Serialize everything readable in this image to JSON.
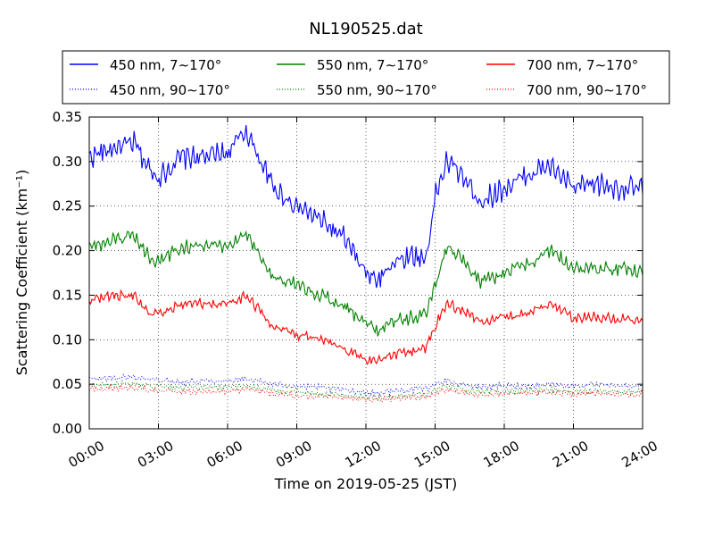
{
  "chart_data": {
    "type": "line",
    "title": "NL190525.dat",
    "xlabel": "Time on 2019-05-25 (JST)",
    "ylabel": "Scattering Coefficient (km⁻¹)",
    "xlim": [
      "00:00",
      "24:00"
    ],
    "ylim": [
      0,
      0.35
    ],
    "x_ticks": [
      "00:00",
      "03:00",
      "06:00",
      "09:00",
      "12:00",
      "15:00",
      "18:00",
      "21:00",
      "24:00"
    ],
    "y_ticks": [
      "0.00",
      "0.05",
      "0.10",
      "0.15",
      "0.20",
      "0.25",
      "0.30",
      "0.35"
    ],
    "x_hours": [
      0,
      1,
      2,
      2.5,
      3,
      4,
      5,
      6,
      6.8,
      8,
      9,
      10,
      11,
      12,
      12.5,
      13,
      14,
      14.6,
      15,
      15.5,
      16,
      17,
      18,
      19,
      20,
      21,
      22,
      23,
      24
    ],
    "legend_location": "top",
    "series": [
      {
        "name": "450 nm, 7∼170°",
        "color": "#0000ff",
        "style": "solid",
        "values": [
          0.305,
          0.315,
          0.32,
          0.295,
          0.282,
          0.305,
          0.305,
          0.31,
          0.335,
          0.27,
          0.25,
          0.235,
          0.215,
          0.175,
          0.165,
          0.185,
          0.195,
          0.19,
          0.26,
          0.3,
          0.29,
          0.255,
          0.27,
          0.285,
          0.295,
          0.27,
          0.275,
          0.27,
          0.27
        ]
      },
      {
        "name": "450 nm, 90∼170°",
        "color": "#0000ff",
        "style": "dotted",
        "values": [
          0.056,
          0.057,
          0.058,
          0.056,
          0.055,
          0.053,
          0.054,
          0.054,
          0.056,
          0.05,
          0.048,
          0.046,
          0.044,
          0.041,
          0.04,
          0.042,
          0.044,
          0.045,
          0.05,
          0.055,
          0.05,
          0.047,
          0.048,
          0.048,
          0.05,
          0.048,
          0.049,
          0.048,
          0.048
        ]
      },
      {
        "name": "550 nm, 7∼170°",
        "color": "#008000",
        "style": "solid",
        "values": [
          0.205,
          0.21,
          0.215,
          0.195,
          0.188,
          0.205,
          0.205,
          0.205,
          0.22,
          0.17,
          0.16,
          0.15,
          0.14,
          0.12,
          0.11,
          0.12,
          0.125,
          0.13,
          0.16,
          0.205,
          0.195,
          0.165,
          0.175,
          0.185,
          0.2,
          0.18,
          0.18,
          0.18,
          0.178
        ]
      },
      {
        "name": "550 nm, 90∼170°",
        "color": "#008000",
        "style": "dotted",
        "values": [
          0.049,
          0.05,
          0.05,
          0.048,
          0.047,
          0.046,
          0.046,
          0.046,
          0.048,
          0.043,
          0.041,
          0.039,
          0.038,
          0.036,
          0.035,
          0.036,
          0.038,
          0.039,
          0.044,
          0.048,
          0.045,
          0.041,
          0.042,
          0.043,
          0.044,
          0.042,
          0.043,
          0.042,
          0.042
        ]
      },
      {
        "name": "700 nm, 7∼170°",
        "color": "#ff0000",
        "style": "solid",
        "values": [
          0.145,
          0.15,
          0.15,
          0.13,
          0.128,
          0.14,
          0.14,
          0.14,
          0.15,
          0.115,
          0.105,
          0.1,
          0.09,
          0.078,
          0.077,
          0.083,
          0.087,
          0.09,
          0.115,
          0.14,
          0.135,
          0.12,
          0.125,
          0.13,
          0.14,
          0.125,
          0.125,
          0.123,
          0.12
        ]
      },
      {
        "name": "700 nm, 90∼170°",
        "color": "#ff0000",
        "style": "dotted",
        "values": [
          0.045,
          0.046,
          0.046,
          0.044,
          0.043,
          0.042,
          0.042,
          0.042,
          0.044,
          0.039,
          0.037,
          0.036,
          0.035,
          0.033,
          0.033,
          0.034,
          0.035,
          0.036,
          0.04,
          0.044,
          0.041,
          0.038,
          0.039,
          0.04,
          0.041,
          0.039,
          0.04,
          0.039,
          0.039
        ]
      }
    ]
  }
}
